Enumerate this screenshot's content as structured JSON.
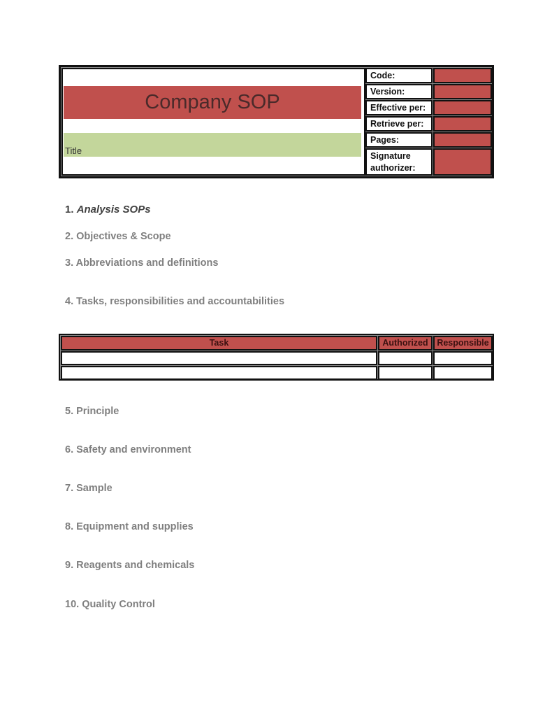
{
  "header": {
    "title": "Company SOP",
    "subtitle_label": "Title",
    "fields": [
      {
        "label": "Code:"
      },
      {
        "label": "Version:"
      },
      {
        "label": "Effective per:"
      },
      {
        "label": "Retrieve per:"
      },
      {
        "label": "Pages:"
      },
      {
        "label": "Signature authorizer:"
      }
    ],
    "colors": {
      "red": "#c0504d",
      "green": "#c3d69b"
    }
  },
  "sections": [
    {
      "num": "1.",
      "title": "Analysis SOPs"
    },
    {
      "num": "2.",
      "title": "Objectives & Scope"
    },
    {
      "num": "3.",
      "title": "Abbreviations and definitions"
    },
    {
      "num": "4.",
      "title": "Tasks, responsibilities and accountabilities"
    },
    {
      "num": "5.",
      "title": "Principle"
    },
    {
      "num": "6.",
      "title": "Safety and environment"
    },
    {
      "num": "7.",
      "title": "Sample"
    },
    {
      "num": "8.",
      "title": "Equipment and supplies"
    },
    {
      "num": "9.",
      "title": "Reagents and chemicals"
    },
    {
      "num": "10.",
      "title": "Quality Control"
    }
  ],
  "task_table": {
    "columns": [
      "Task",
      "Authorized",
      "Responsible"
    ],
    "rows": [
      [
        "",
        "",
        ""
      ],
      [
        "",
        "",
        ""
      ]
    ]
  }
}
